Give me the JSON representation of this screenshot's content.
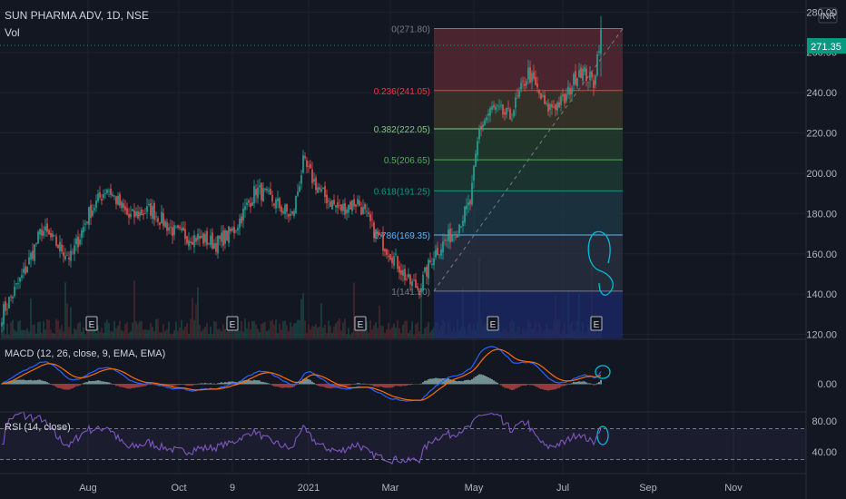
{
  "header": {
    "symbol_title": "SUN PHARMA ADV, 1D, NSE",
    "volume_label": "Vol",
    "currency": "INR"
  },
  "price_badge": "271.35",
  "chart_data": {
    "type": "candlestick",
    "price_axis": {
      "ylim": [
        118,
        286
      ],
      "ticks": [
        "280.00",
        "260.00",
        "240.00",
        "220.00",
        "200.00",
        "180.00",
        "160.00",
        "140.00",
        "120.00"
      ],
      "tick_values": [
        280,
        260,
        240,
        220,
        200,
        180,
        160,
        140,
        120
      ]
    },
    "x_axis": {
      "ticks": [
        "Aug",
        "Oct",
        "9",
        "2021",
        "Mar",
        "May",
        "Jul",
        "Sep",
        "Nov"
      ]
    },
    "anchors": [
      {
        "i": 0,
        "v": 130
      },
      {
        "i": 12,
        "v": 150
      },
      {
        "i": 22,
        "v": 172
      },
      {
        "i": 38,
        "v": 158
      },
      {
        "i": 48,
        "v": 180
      },
      {
        "i": 58,
        "v": 193
      },
      {
        "i": 70,
        "v": 178
      },
      {
        "i": 82,
        "v": 182
      },
      {
        "i": 96,
        "v": 170
      },
      {
        "i": 108,
        "v": 168
      },
      {
        "i": 118,
        "v": 165
      },
      {
        "i": 128,
        "v": 172
      },
      {
        "i": 140,
        "v": 192
      },
      {
        "i": 150,
        "v": 186
      },
      {
        "i": 160,
        "v": 178
      },
      {
        "i": 166,
        "v": 205
      },
      {
        "i": 176,
        "v": 190
      },
      {
        "i": 186,
        "v": 182
      },
      {
        "i": 196,
        "v": 186
      },
      {
        "i": 206,
        "v": 170
      },
      {
        "i": 216,
        "v": 158
      },
      {
        "i": 224,
        "v": 146
      },
      {
        "i": 230,
        "v": 143
      },
      {
        "i": 238,
        "v": 160
      },
      {
        "i": 250,
        "v": 172
      },
      {
        "i": 258,
        "v": 185
      },
      {
        "i": 263,
        "v": 222
      },
      {
        "i": 270,
        "v": 232
      },
      {
        "i": 280,
        "v": 228
      },
      {
        "i": 290,
        "v": 250
      },
      {
        "i": 300,
        "v": 232
      },
      {
        "i": 310,
        "v": 236
      },
      {
        "i": 318,
        "v": 252
      },
      {
        "i": 326,
        "v": 245
      },
      {
        "i": 330,
        "v": 271
      }
    ],
    "earnings_markers": [
      "E",
      "E",
      "E",
      "E",
      "E"
    ],
    "fibonacci": [
      {
        "label": "0(271.80)",
        "value": 271.8,
        "color": "#787b86"
      },
      {
        "label": "0.236(241.05)",
        "value": 241.05,
        "color": "#f23645"
      },
      {
        "label": "0.382(222.05)",
        "value": 222.05,
        "color": "#81c784"
      },
      {
        "label": "0.5(206.65)",
        "value": 206.65,
        "color": "#4caf50"
      },
      {
        "label": "0.618(191.25)",
        "value": 191.25,
        "color": "#089981"
      },
      {
        "label": "0.786(169.35)",
        "value": 169.35,
        "color": "#64b5f6"
      },
      {
        "label": "1(141.50)",
        "value": 141.5,
        "color": "#787b86"
      }
    ],
    "macd": {
      "label": "MACD (12, 26, close, 9, EMA, EMA)",
      "ticks": [
        "0.00"
      ]
    },
    "rsi": {
      "label": "RSI (14, close)",
      "ticks": [
        "80.00",
        "40.00"
      ],
      "tick_values": [
        80,
        40
      ],
      "band": [
        30,
        70
      ]
    },
    "colors": {
      "up": "#26a69a",
      "down": "#ef5350",
      "macd_line": "#2962ff",
      "signal_line": "#ff6d00",
      "rsi_line": "#7e57c2",
      "annotation": "#00bcd4",
      "price_badge": "#089981"
    }
  }
}
